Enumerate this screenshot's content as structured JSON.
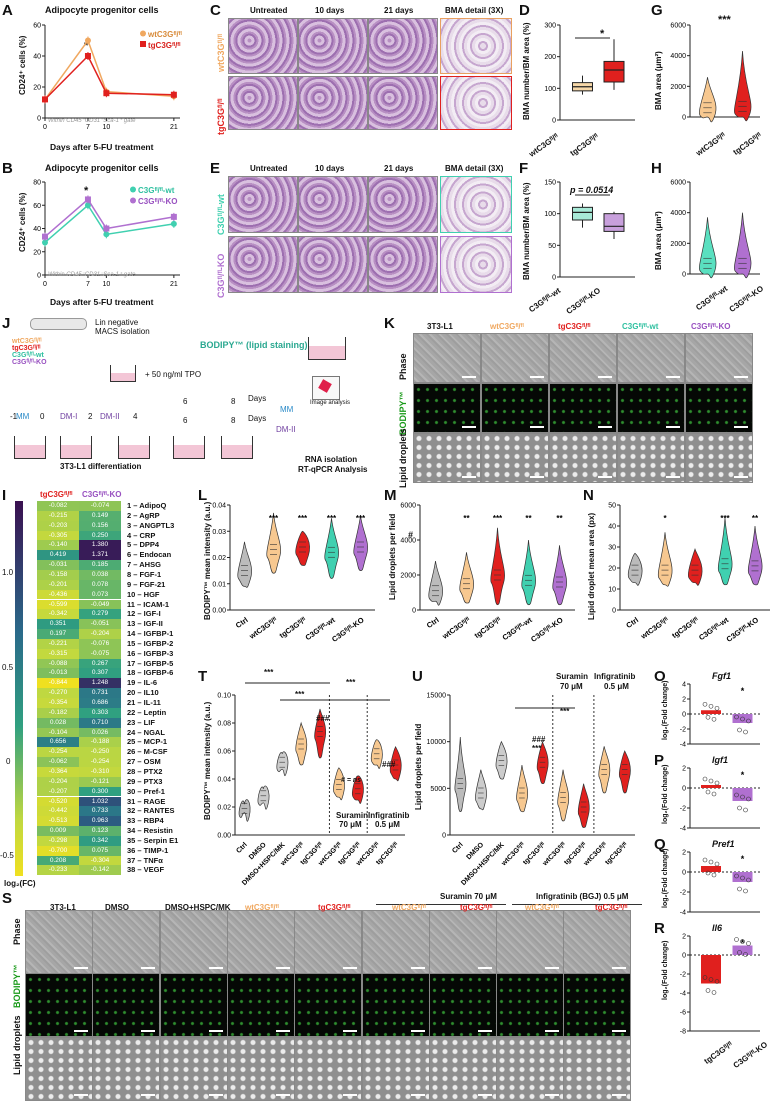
{
  "panels": {
    "A": "A",
    "B": "B",
    "C": "C",
    "D": "D",
    "E": "E",
    "F": "F",
    "G": "G",
    "H": "H",
    "I": "I",
    "J": "J",
    "K": "K",
    "L": "L",
    "M": "M",
    "N": "N",
    "O": "O",
    "P": "P",
    "Q": "Q",
    "R": "R",
    "S": "S",
    "T": "T",
    "U": "U"
  },
  "A": {
    "title": "Adipocyte progenitor cells",
    "ylabel": "CD24⁺ cells (%)",
    "xlabel": "Days after 5-FU treatment",
    "note": "Within CD45⁻CD31⁻Sca-1⁺ gate",
    "legend": [
      "wtC3Gᶠˡ/ᶠˡ",
      "tgC3Gᶠˡ/ᶠˡ"
    ],
    "star": "*"
  },
  "B": {
    "title": "Adipocyte progenitor cells",
    "ylabel": "CD24⁺ cells (%)",
    "xlabel": "Days after 5-FU treatment",
    "note": "Within CD45⁻CD31⁻Sca-1⁺ gate",
    "legend": [
      "C3Gᶠˡ/ᶠˡ-wt",
      "C3Gᶠˡ/ᶠˡ-KO"
    ],
    "star": "*"
  },
  "C": {
    "cols": [
      "Untreated",
      "10 days",
      "21 days",
      "BMA detail (3X)"
    ],
    "rows": [
      "wtC3Gᶠˡ/ᶠˡ",
      "tgC3Gᶠˡ/ᶠˡ"
    ]
  },
  "E": {
    "cols": [
      "Untreated",
      "10 days",
      "21 days",
      "BMA detail (3X)"
    ],
    "rows": [
      "C3Gᶠˡ/ᶠˡ-wt",
      "C3Gᶠˡ/ᶠˡ-KO"
    ]
  },
  "D": {
    "ylabel": "BMA number/BM area (%)",
    "xt": [
      "wtC3Gᶠˡ/ᶠˡ",
      "tgC3Gᶠˡ/ᶠˡ"
    ],
    "star": "*"
  },
  "F": {
    "ylabel": "BMA number/BM area (%)",
    "xt": [
      "C3Gᶠˡ/ᶠˡ-wt",
      "C3Gᶠˡ/ᶠˡ-KO"
    ],
    "p": "p = 0.0514"
  },
  "G": {
    "ylabel": "BMA area (μm²)",
    "xt": [
      "wtC3Gᶠˡ/ᶠˡ",
      "tgC3Gᶠˡ/ᶠˡ"
    ],
    "star": "***"
  },
  "H": {
    "ylabel": "BMA area (μm²)",
    "xt": [
      "C3Gᶠˡ/ᶠˡ-wt",
      "C3Gᶠˡ/ᶠˡ-KO"
    ]
  },
  "J": {
    "mice": [
      "wtC3Gᶠˡ/ᶠˡ",
      "tgC3Gᶠˡ/ᶠˡ",
      "C3Gᶠˡ/ᶠˡ-wt",
      "C3Gᶠˡ/ᶠˡ-KO"
    ],
    "lin": "Lin negative",
    "macs": "MACS isolation",
    "tpo": "+ 50 ng/ml TPO",
    "bodipy": "BODIPY™ (lipid staining)",
    "days": "Days",
    "mm": "MM",
    "dm2": "DM-II",
    "dm1": "DM-I",
    "t": [
      "-1",
      "0",
      "2",
      "4",
      "6",
      "8",
      "6",
      "8"
    ],
    "diff": "3T3-L1 differentiation",
    "img": "Image analysis",
    "rna1": "RNA isolation",
    "rna2": "RT-qPCR Analysis"
  },
  "K": {
    "cols": [
      "3T3-L1",
      "wtC3Gᶠˡ/ᶠˡ",
      "tgC3Gᶠˡ/ᶠˡ",
      "C3Gᶠˡ/ᶠˡ-wt",
      "C3Gᶠˡ/ᶠˡ-KO"
    ],
    "rows": [
      "Phase",
      "BODIPY™",
      "Lipid droplets"
    ]
  },
  "I": {
    "heads": [
      "tgC3Gᶠˡ/ᶠˡ",
      "C3Gᶠˡ/ᶠˡ-KO"
    ],
    "scale": [
      "1.0",
      "0.5",
      "0",
      "-0.5"
    ],
    "legend": "log₂(FC)",
    "genes": [
      "1 – AdipoQ",
      "2 – AgRP",
      "3 – ANGPTL3",
      "4 – CRP",
      "5 – DPP4",
      "6 – Endocan",
      "7 – AHSG",
      "8 – FGF-1",
      "9 – FGF-21",
      "10 – HGF",
      "11 – ICAM-1",
      "12 – IGF-I",
      "13 – IGF-II",
      "14 – IGFBP-1",
      "15 – IGFBP-2",
      "16 – IGFBP-3",
      "17 – IGFBP-5",
      "18 – IGFBP-6",
      "19 – IL-6",
      "20 – IL10",
      "21 – IL-11",
      "22 – Leptin",
      "23 – LIF",
      "24 – NGAL",
      "25 – MCP-1",
      "26 – M-CSF",
      "27 – OSM",
      "28 – PTX2",
      "29 – PTX3",
      "30 – Pref-1",
      "31 – RAGE",
      "32 – RANTES",
      "33 – RBP4",
      "34 – Resistin",
      "35 – Serpin E1",
      "36 – TIMP-1",
      "37 – TNFα",
      "38 – VEGF"
    ],
    "v1": [
      -0.082,
      -0.215,
      -0.203,
      -0.305,
      -0.14,
      0.419,
      -0.031,
      -0.158,
      -0.201,
      -0.436,
      -0.599,
      -0.342,
      0.351,
      0.197,
      -0.221,
      -0.315,
      -0.088,
      -0.013,
      -0.844,
      -0.27,
      -0.354,
      -0.182,
      0.028,
      -0.104,
      0.656,
      -0.254,
      -0.062,
      -0.364,
      -0.204,
      -0.207,
      -0.52,
      -0.442,
      -0.513,
      0.009,
      -0.298,
      -0.7,
      0.208,
      -0.233
    ],
    "v2": [
      -0.074,
      0.149,
      0.156,
      0.25,
      1.38,
      1.371,
      0.185,
      0.038,
      0.078,
      0.073,
      -0.049,
      0.279,
      -0.051,
      -0.204,
      -0.076,
      -0.075,
      0.267,
      0.307,
      1.248,
      0.731,
      0.686,
      0.303,
      0.71,
      0.026,
      -0.188,
      -0.25,
      -0.254,
      -0.31,
      -0.121,
      0.3,
      1.032,
      0.733,
      0.963,
      0.123,
      0.342,
      0.075,
      -0.304,
      -0.142
    ]
  },
  "L": {
    "ylabel": "BODIPY™ mean intensity (a.u.)",
    "xt": [
      "Ctrl",
      "wtC3Gᶠˡ/ᶠˡ",
      "tgC3Gᶠˡ/ᶠˡ",
      "C3Gᶠˡ/ᶠˡ-wt",
      "C3Gᶠˡ/ᶠˡ-KO"
    ],
    "stars": [
      "",
      "***",
      "***",
      "***",
      "***"
    ]
  },
  "M": {
    "ylabel": "Lipid droplets per field",
    "xt": [
      "Ctrl",
      "wtC3Gᶠˡ/ᶠˡ",
      "tgC3Gᶠˡ/ᶠˡ",
      "C3Gᶠˡ/ᶠˡ-wt",
      "C3Gᶠˡ/ᶠˡ-KO"
    ],
    "stars": [
      "",
      "**",
      "***",
      "**",
      "**"
    ],
    "hash": "#"
  },
  "N": {
    "ylabel": "Lipid droplet mean area (px)",
    "xt": [
      "Ctrl",
      "wtC3Gᶠˡ/ᶠˡ",
      "tgC3Gᶠˡ/ᶠˡ",
      "C3Gᶠˡ/ᶠˡ-wt",
      "C3Gᶠˡ/ᶠˡ-KO"
    ],
    "stars": [
      "",
      "*",
      "",
      "***",
      "**"
    ]
  },
  "T": {
    "ylabel": "BODIPY™ mean intensity (a.u.)",
    "xt": [
      "Ctrl",
      "DMSO",
      "DMSO+HSPC/MK",
      "wtC3Gᶠˡ/ᶠˡ",
      "tgC3Gᶠˡ/ᶠˡ",
      "wtC3Gᶠˡ/ᶠˡ",
      "tgC3Gᶠˡ/ᶠˡ",
      "wtC3Gᶠˡ/ᶠˡ",
      "tgC3Gᶠˡ/ᶠˡ"
    ],
    "sur": "Suramin",
    "sur2": "70 μM",
    "inf": "Infigratinib",
    "inf2": "0.5 μM",
    "ns": "# = ns",
    "hash": "###",
    "stars": "***"
  },
  "U": {
    "ylabel": "Lipid droplets per field",
    "xt": [
      "Ctrl",
      "DMSO",
      "DMSO+HSPC/MK",
      "wtC3Gᶠˡ/ᶠˡ",
      "tgC3Gᶠˡ/ᶠˡ",
      "wtC3Gᶠˡ/ᶠˡ",
      "tgC3Gᶠˡ/ᶠˡ",
      "wtC3Gᶠˡ/ᶠˡ",
      "tgC3Gᶠˡ/ᶠˡ"
    ],
    "sur": "Suramin",
    "sur2": "70 μM",
    "inf": "Infigratinib",
    "inf2": "0.5 μM",
    "hash": "###",
    "stars": "***"
  },
  "OPQR": {
    "genes": [
      "Fgf1",
      "Igf1",
      "Pref1",
      "Il6"
    ],
    "ylabel": "log₂(Fold change)",
    "xt": [
      "tgC3Gᶠˡ/ᶠˡ",
      "C3Gᶠˡ/ᶠˡ-KO"
    ],
    "star": "*"
  },
  "S": {
    "cols": [
      "3T3-L1",
      "DMSO",
      "DMSO+HSPC/MK",
      "wtC3Gᶠˡ/ᶠˡ",
      "tgC3Gᶠˡ/ᶠˡ",
      "wtC3Gᶠˡ/ᶠˡ",
      "tgC3Gᶠˡ/ᶠˡ",
      "wtC3Gᶠˡ/ᶠˡ",
      "tgC3Gᶠˡ/ᶠˡ"
    ],
    "rows": [
      "Phase",
      "BODIPY™",
      "Lipid droplets"
    ],
    "g1": "Suramin 70 μM",
    "g2": "Infigratinib (BGJ) 0.5 μM"
  },
  "chart_data": [
    {
      "type": "line",
      "panel": "A",
      "x": [
        0,
        7,
        10,
        21
      ],
      "series": [
        {
          "name": "wtC3Gᶠˡ/ᶠˡ",
          "values": [
            12,
            50,
            17,
            14
          ],
          "color": "#f0a860"
        },
        {
          "name": "tgC3Gᶠˡ/ᶠˡ",
          "values": [
            12,
            40,
            16,
            15
          ],
          "color": "#e0201e"
        }
      ],
      "ylim": [
        0,
        60
      ],
      "yticks": [
        0,
        20,
        40,
        60
      ],
      "xticks": [
        0,
        7,
        10,
        21
      ]
    },
    {
      "type": "line",
      "panel": "B",
      "x": [
        0,
        7,
        10,
        21
      ],
      "series": [
        {
          "name": "C3Gᶠˡ/ᶠˡ-wt",
          "values": [
            28,
            60,
            35,
            44
          ],
          "color": "#40d0b0"
        },
        {
          "name": "C3Gᶠˡ/ᶠˡ-KO",
          "values": [
            33,
            65,
            40,
            50
          ],
          "color": "#b070d0"
        }
      ],
      "ylim": [
        0,
        80
      ],
      "yticks": [
        0,
        20,
        40,
        60,
        80
      ],
      "xticks": [
        0,
        7,
        10,
        21
      ]
    },
    {
      "type": "box",
      "panel": "D",
      "categories": [
        "wtC3Gᶠˡ/ᶠˡ",
        "tgC3Gᶠˡ/ᶠˡ"
      ],
      "boxes": [
        [
          80,
          92,
          105,
          118,
          140
        ],
        [
          95,
          120,
          158,
          185,
          255
        ]
      ],
      "ylim": [
        0,
        300
      ],
      "yticks": [
        0,
        100,
        200,
        300
      ]
    },
    {
      "type": "box",
      "panel": "F",
      "categories": [
        "C3Gᶠˡ/ᶠˡ-wt",
        "C3Gᶠˡ/ᶠˡ-KO"
      ],
      "boxes": [
        [
          78,
          90,
          102,
          110,
          116
        ],
        [
          60,
          72,
          80,
          100,
          103
        ]
      ],
      "ylim": [
        0,
        150
      ],
      "yticks": [
        0,
        50,
        100,
        150
      ]
    },
    {
      "type": "violin",
      "panel": "G",
      "categories": [
        "wtC3Gᶠˡ/ᶠˡ",
        "tgC3Gᶠˡ/ᶠˡ"
      ],
      "ylim": [
        0,
        6000
      ],
      "yticks": [
        0,
        2000,
        4000,
        6000
      ]
    },
    {
      "type": "violin",
      "panel": "H",
      "categories": [
        "C3Gᶠˡ/ᶠˡ-wt",
        "C3Gᶠˡ/ᶠˡ-KO"
      ],
      "ylim": [
        0,
        6000
      ],
      "yticks": [
        0,
        2000,
        4000,
        6000
      ]
    },
    {
      "type": "violin",
      "panel": "L",
      "ylim": [
        0,
        0.04
      ],
      "yticks": [
        0,
        0.01,
        0.02,
        0.03,
        0.04
      ]
    },
    {
      "type": "violin",
      "panel": "M",
      "ylim": [
        0,
        6000
      ],
      "yticks": [
        0,
        2000,
        4000,
        6000
      ]
    },
    {
      "type": "violin",
      "panel": "N",
      "ylim": [
        0,
        50
      ],
      "yticks": [
        0,
        10,
        20,
        30,
        40,
        50
      ]
    },
    {
      "type": "violin",
      "panel": "T",
      "ylim": [
        0,
        0.1
      ],
      "yticks": [
        0,
        0.02,
        0.04,
        0.06,
        0.08,
        0.1
      ]
    },
    {
      "type": "violin",
      "panel": "U",
      "ylim": [
        0,
        15000
      ],
      "yticks": [
        0,
        5000,
        10000,
        15000
      ]
    },
    {
      "type": "bar",
      "panel": "O",
      "gene": "Fgf1",
      "values": [
        0.5,
        -1.2
      ],
      "ylim": [
        -4,
        4
      ],
      "yticks": [
        -4,
        -2,
        0,
        2,
        4
      ]
    },
    {
      "type": "bar",
      "panel": "P",
      "gene": "Igf1",
      "values": [
        0.3,
        -1.3
      ],
      "ylim": [
        -4,
        2
      ],
      "yticks": [
        -4,
        -2,
        0,
        2
      ]
    },
    {
      "type": "bar",
      "panel": "Q",
      "gene": "Pref1",
      "values": [
        0.6,
        -1.0
      ],
      "ylim": [
        -4,
        2
      ],
      "yticks": [
        -4,
        -2,
        0,
        2
      ]
    },
    {
      "type": "bar",
      "panel": "R",
      "gene": "Il6",
      "values": [
        -3.0,
        1.0
      ],
      "ylim": [
        -8,
        2
      ],
      "yticks": [
        -8,
        -6,
        -4,
        -2,
        0,
        2
      ]
    }
  ]
}
